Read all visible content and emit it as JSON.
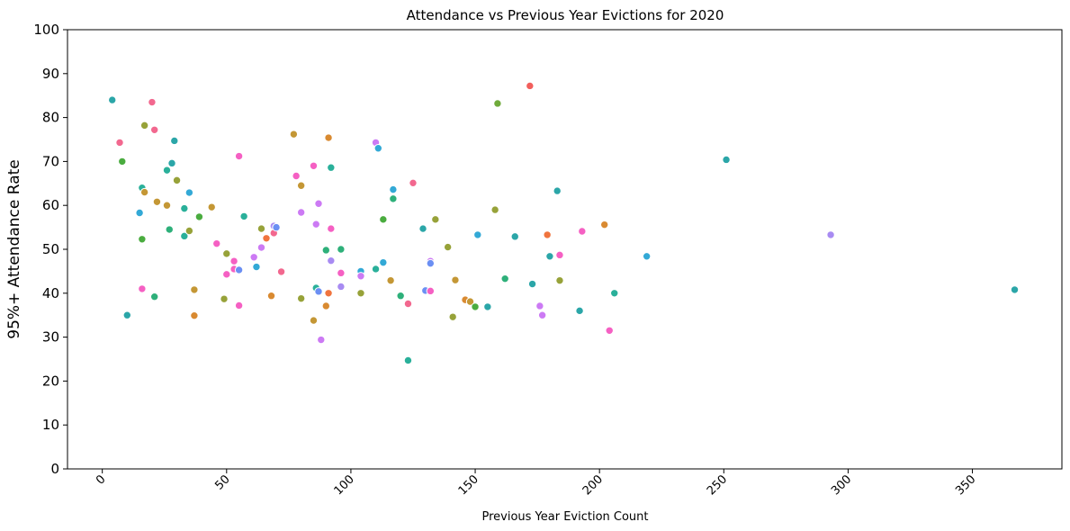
{
  "chart_data": {
    "type": "scatter",
    "title": "Attendance vs Previous Year Evictions for 2020",
    "xlabel": "Previous Year Eviction Count",
    "ylabel": "95%+ Attendance Rate",
    "xlim": [
      -14,
      386
    ],
    "ylim": [
      0,
      100
    ],
    "xticks": [
      0,
      50,
      100,
      150,
      200,
      250,
      300,
      350
    ],
    "yticks": [
      0,
      10,
      20,
      30,
      40,
      50,
      60,
      70,
      80,
      90,
      100
    ],
    "grid": false,
    "legend": "none",
    "points": [
      {
        "x": 4,
        "y": 84,
        "color": "#2ba6a8"
      },
      {
        "x": 7,
        "y": 74.3,
        "color": "#f2688f"
      },
      {
        "x": 8,
        "y": 70,
        "color": "#4aac3f"
      },
      {
        "x": 10,
        "y": 35,
        "color": "#2ba6a8"
      },
      {
        "x": 15,
        "y": 58.3,
        "color": "#33a9d6"
      },
      {
        "x": 16,
        "y": 64,
        "color": "#2ab09a"
      },
      {
        "x": 16,
        "y": 52.3,
        "color": "#4aac3f"
      },
      {
        "x": 16,
        "y": 41,
        "color": "#f560c3"
      },
      {
        "x": 17,
        "y": 78.2,
        "color": "#97a239"
      },
      {
        "x": 17,
        "y": 63,
        "color": "#c49735"
      },
      {
        "x": 20,
        "y": 83.5,
        "color": "#f2688f"
      },
      {
        "x": 21,
        "y": 77.2,
        "color": "#f2688f"
      },
      {
        "x": 21,
        "y": 39.2,
        "color": "#2eb07a"
      },
      {
        "x": 22,
        "y": 60.8,
        "color": "#c49735"
      },
      {
        "x": 26,
        "y": 68,
        "color": "#2ab09a"
      },
      {
        "x": 26,
        "y": 60,
        "color": "#c49735"
      },
      {
        "x": 27,
        "y": 54.5,
        "color": "#2eb07a"
      },
      {
        "x": 28,
        "y": 69.6,
        "color": "#2ba6a8"
      },
      {
        "x": 29,
        "y": 74.7,
        "color": "#2ba6a8"
      },
      {
        "x": 30,
        "y": 65.7,
        "color": "#97a239"
      },
      {
        "x": 33,
        "y": 59.3,
        "color": "#2ab09a"
      },
      {
        "x": 33,
        "y": 53,
        "color": "#2ab09a"
      },
      {
        "x": 35,
        "y": 62.9,
        "color": "#33a9d6"
      },
      {
        "x": 35,
        "y": 54.2,
        "color": "#97a239"
      },
      {
        "x": 37,
        "y": 40.8,
        "color": "#c49735"
      },
      {
        "x": 37,
        "y": 34.9,
        "color": "#d98a31"
      },
      {
        "x": 39,
        "y": 57.4,
        "color": "#4aac3f"
      },
      {
        "x": 44,
        "y": 59.6,
        "color": "#c49735"
      },
      {
        "x": 46,
        "y": 51.3,
        "color": "#f560c3"
      },
      {
        "x": 49,
        "y": 38.7,
        "color": "#97a239"
      },
      {
        "x": 50,
        "y": 49,
        "color": "#97a239"
      },
      {
        "x": 50,
        "y": 44.3,
        "color": "#f560c3"
      },
      {
        "x": 53,
        "y": 47.3,
        "color": "#f560c3"
      },
      {
        "x": 53,
        "y": 45.5,
        "color": "#f560c3"
      },
      {
        "x": 55,
        "y": 71.2,
        "color": "#f560c3"
      },
      {
        "x": 55,
        "y": 45.3,
        "color": "#6b8ff3"
      },
      {
        "x": 55,
        "y": 37.2,
        "color": "#f560c3"
      },
      {
        "x": 57,
        "y": 57.5,
        "color": "#2ab09a"
      },
      {
        "x": 61,
        "y": 48.2,
        "color": "#cc7af4"
      },
      {
        "x": 62,
        "y": 46,
        "color": "#33a9d6"
      },
      {
        "x": 64,
        "y": 54.7,
        "color": "#97a239"
      },
      {
        "x": 64,
        "y": 50.4,
        "color": "#cc7af4"
      },
      {
        "x": 66,
        "y": 52.5,
        "color": "#f0743e"
      },
      {
        "x": 68,
        "y": 39.4,
        "color": "#d98a31"
      },
      {
        "x": 69,
        "y": 55.3,
        "color": "#a88bf2"
      },
      {
        "x": 69,
        "y": 53.7,
        "color": "#f2688f"
      },
      {
        "x": 70,
        "y": 55,
        "color": "#6b8ff3"
      },
      {
        "x": 72,
        "y": 44.9,
        "color": "#f2688f"
      },
      {
        "x": 77,
        "y": 76.2,
        "color": "#c49735"
      },
      {
        "x": 78,
        "y": 66.7,
        "color": "#f560c3"
      },
      {
        "x": 80,
        "y": 64.5,
        "color": "#c49735"
      },
      {
        "x": 80,
        "y": 58.4,
        "color": "#cc7af4"
      },
      {
        "x": 80,
        "y": 38.8,
        "color": "#97a239"
      },
      {
        "x": 85,
        "y": 69,
        "color": "#f560c3"
      },
      {
        "x": 85,
        "y": 33.8,
        "color": "#c49735"
      },
      {
        "x": 86,
        "y": 55.7,
        "color": "#cc7af4"
      },
      {
        "x": 86,
        "y": 41.2,
        "color": "#2ab09a"
      },
      {
        "x": 87,
        "y": 60.4,
        "color": "#cc7af4"
      },
      {
        "x": 87,
        "y": 40.4,
        "color": "#6b8ff3"
      },
      {
        "x": 88,
        "y": 29.4,
        "color": "#cc7af4"
      },
      {
        "x": 90,
        "y": 49.8,
        "color": "#2eb07a"
      },
      {
        "x": 90,
        "y": 37.1,
        "color": "#d98a31"
      },
      {
        "x": 91,
        "y": 75.4,
        "color": "#d98a31"
      },
      {
        "x": 91,
        "y": 40,
        "color": "#f0743e"
      },
      {
        "x": 92,
        "y": 68.6,
        "color": "#2ab09a"
      },
      {
        "x": 92,
        "y": 54.7,
        "color": "#f560c3"
      },
      {
        "x": 92,
        "y": 47.4,
        "color": "#a88bf2"
      },
      {
        "x": 96,
        "y": 50,
        "color": "#2eb07a"
      },
      {
        "x": 96,
        "y": 44.6,
        "color": "#f560c3"
      },
      {
        "x": 96,
        "y": 41.5,
        "color": "#a88bf2"
      },
      {
        "x": 104,
        "y": 45,
        "color": "#33a9d6"
      },
      {
        "x": 104,
        "y": 43.9,
        "color": "#cc7af4"
      },
      {
        "x": 104,
        "y": 40,
        "color": "#97a239"
      },
      {
        "x": 110,
        "y": 74.3,
        "color": "#cc7af4"
      },
      {
        "x": 110,
        "y": 45.5,
        "color": "#2ab09a"
      },
      {
        "x": 111,
        "y": 73,
        "color": "#33a9d6"
      },
      {
        "x": 113,
        "y": 56.8,
        "color": "#4aac3f"
      },
      {
        "x": 113,
        "y": 47,
        "color": "#33a9d6"
      },
      {
        "x": 116,
        "y": 42.9,
        "color": "#c49735"
      },
      {
        "x": 117,
        "y": 61.5,
        "color": "#2eb07a"
      },
      {
        "x": 117,
        "y": 63.6,
        "color": "#33a9d6"
      },
      {
        "x": 120,
        "y": 39.4,
        "color": "#2eb07a"
      },
      {
        "x": 123,
        "y": 37.6,
        "color": "#f2688f"
      },
      {
        "x": 123,
        "y": 24.7,
        "color": "#2ab09a"
      },
      {
        "x": 125,
        "y": 65.1,
        "color": "#f2688f"
      },
      {
        "x": 129,
        "y": 54.7,
        "color": "#2ba6a8"
      },
      {
        "x": 130,
        "y": 40.6,
        "color": "#6b8ff3"
      },
      {
        "x": 132,
        "y": 47.3,
        "color": "#cc7af4"
      },
      {
        "x": 132,
        "y": 46.8,
        "color": "#6b8ff3"
      },
      {
        "x": 132,
        "y": 40.5,
        "color": "#f560c3"
      },
      {
        "x": 134,
        "y": 56.8,
        "color": "#97a239"
      },
      {
        "x": 139,
        "y": 50.5,
        "color": "#97a239"
      },
      {
        "x": 141,
        "y": 34.6,
        "color": "#97a239"
      },
      {
        "x": 142,
        "y": 43,
        "color": "#c49735"
      },
      {
        "x": 146,
        "y": 38.5,
        "color": "#d98a31"
      },
      {
        "x": 148,
        "y": 38.1,
        "color": "#c49735"
      },
      {
        "x": 150,
        "y": 36.9,
        "color": "#4aac3f"
      },
      {
        "x": 151,
        "y": 53.3,
        "color": "#33a9d6"
      },
      {
        "x": 155,
        "y": 36.9,
        "color": "#2ba6a8"
      },
      {
        "x": 158,
        "y": 59,
        "color": "#97a239"
      },
      {
        "x": 159,
        "y": 83.2,
        "color": "#6faa3a"
      },
      {
        "x": 162,
        "y": 43.3,
        "color": "#2eb07a"
      },
      {
        "x": 166,
        "y": 52.9,
        "color": "#2ba6a8"
      },
      {
        "x": 172,
        "y": 87.2,
        "color": "#f25f5c"
      },
      {
        "x": 173,
        "y": 42.1,
        "color": "#2ba6a8"
      },
      {
        "x": 176,
        "y": 37.1,
        "color": "#cc7af4"
      },
      {
        "x": 177,
        "y": 35,
        "color": "#cc7af4"
      },
      {
        "x": 179,
        "y": 53.3,
        "color": "#f0743e"
      },
      {
        "x": 180,
        "y": 48.4,
        "color": "#2ba6a8"
      },
      {
        "x": 183,
        "y": 63.3,
        "color": "#2ba6a8"
      },
      {
        "x": 184,
        "y": 48.7,
        "color": "#f560c3"
      },
      {
        "x": 184,
        "y": 42.9,
        "color": "#97a239"
      },
      {
        "x": 192,
        "y": 36,
        "color": "#2ba6a8"
      },
      {
        "x": 193,
        "y": 54.1,
        "color": "#f560c3"
      },
      {
        "x": 202,
        "y": 55.6,
        "color": "#d98a31"
      },
      {
        "x": 204,
        "y": 31.5,
        "color": "#f560c3"
      },
      {
        "x": 206,
        "y": 40,
        "color": "#2ab09a"
      },
      {
        "x": 219,
        "y": 48.4,
        "color": "#33a9d6"
      },
      {
        "x": 251,
        "y": 70.4,
        "color": "#2ba6a8"
      },
      {
        "x": 293,
        "y": 53.3,
        "color": "#a88bf2"
      },
      {
        "x": 367,
        "y": 40.8,
        "color": "#2ba6a8"
      }
    ]
  }
}
